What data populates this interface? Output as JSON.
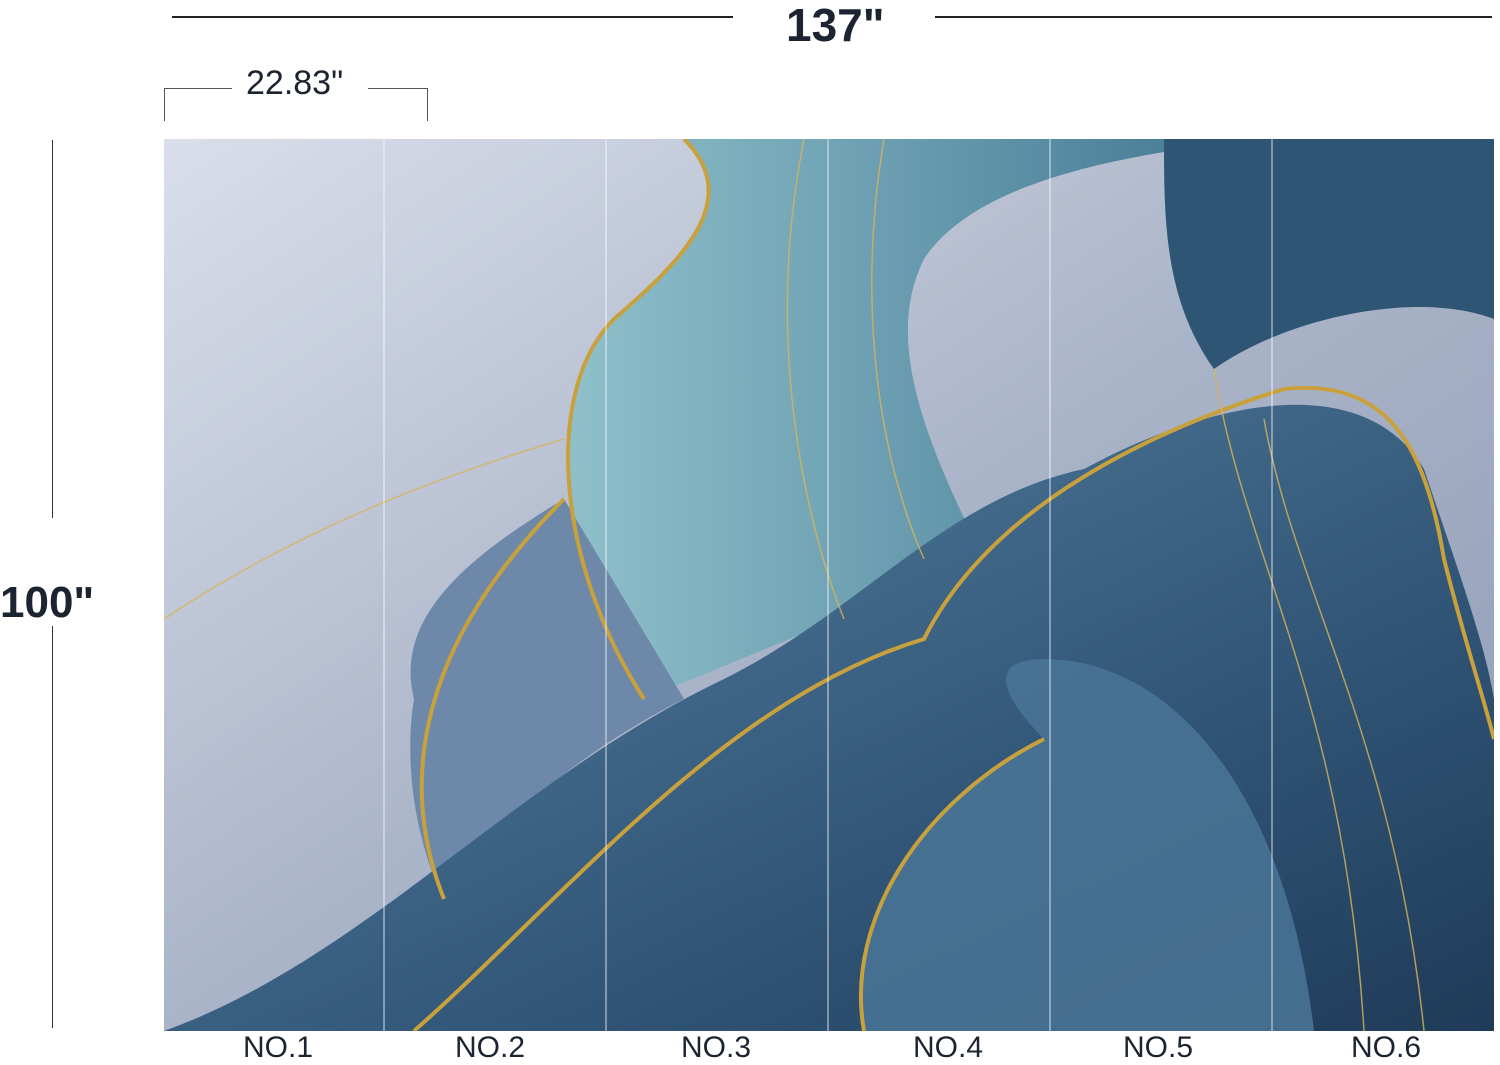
{
  "dimensions": {
    "total_width": "137\"",
    "panel_width": "22.83\"",
    "height": "100\""
  },
  "panels": [
    "NO.1",
    "NO.2",
    "NO.3",
    "NO.4",
    "NO.5",
    "NO.6"
  ],
  "colors": {
    "light": "#c9d1df",
    "mid_blue": "#5f8aa6",
    "teal": "#7fb0bf",
    "dark_blue": "#2f4f6e",
    "gold": "#c9a13c"
  }
}
